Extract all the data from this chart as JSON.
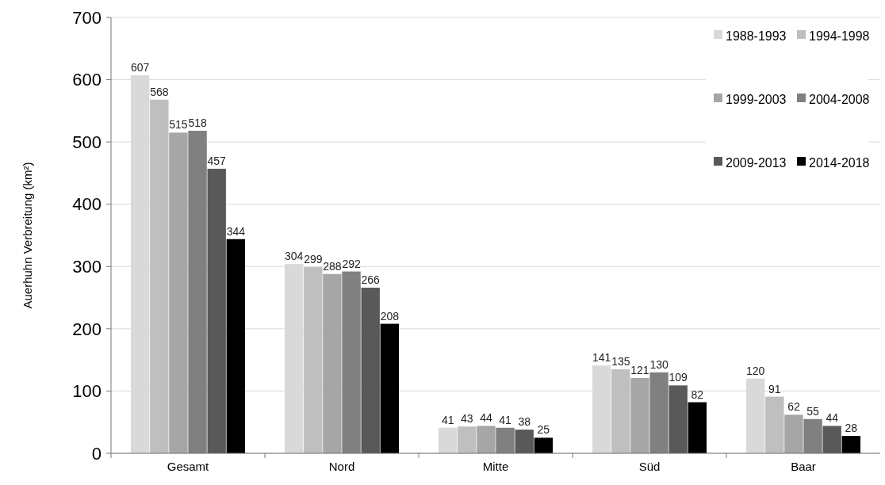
{
  "chart_data": {
    "type": "bar",
    "ylabel": "Auerhuhn Verbreitung (km²)",
    "categories": [
      "Gesamt",
      "Nord",
      "Mitte",
      "Süd",
      "Baar"
    ],
    "series": [
      {
        "name": "1988-1993",
        "color": "#d9d9d9",
        "values": [
          607,
          304,
          41,
          141,
          120
        ]
      },
      {
        "name": "1994-1998",
        "color": "#bfbfbf",
        "values": [
          568,
          299,
          43,
          135,
          91
        ]
      },
      {
        "name": "1999-2003",
        "color": "#a6a6a6",
        "values": [
          515,
          288,
          44,
          121,
          62
        ]
      },
      {
        "name": "2004-2008",
        "color": "#808080",
        "values": [
          518,
          292,
          41,
          130,
          55
        ]
      },
      {
        "name": "2009-2013",
        "color": "#595959",
        "values": [
          457,
          266,
          38,
          109,
          44
        ]
      },
      {
        "name": "2014-2018",
        "color": "#000000",
        "values": [
          344,
          208,
          25,
          82,
          28
        ]
      }
    ],
    "ylim": [
      0,
      700
    ],
    "yticks": [
      0,
      100,
      200,
      300,
      400,
      500,
      600,
      700
    ],
    "grid": "y",
    "legend": "top right",
    "data_labels": true
  }
}
